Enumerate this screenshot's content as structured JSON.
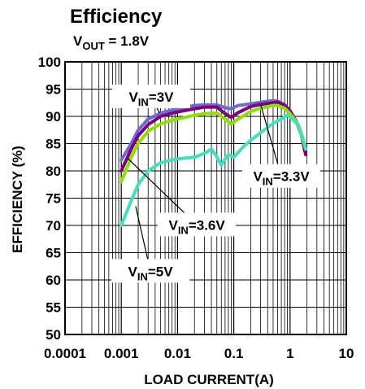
{
  "chart_data": {
    "type": "line",
    "title": "Efficiency",
    "subtitle": {
      "base": "V",
      "sub": "OUT",
      "rest": " = 1.8V"
    },
    "xlabel": "LOAD CURRENT(A)",
    "ylabel": "EFFICIENCY (%)",
    "x_scale": "log",
    "xlim": [
      0.0001,
      10
    ],
    "ylim": [
      50,
      100
    ],
    "x_ticks": [
      "0.0001",
      "0.001",
      "0.01",
      "0.1",
      "1",
      "10"
    ],
    "y_ticks": [
      "50",
      "55",
      "60",
      "65",
      "70",
      "75",
      "80",
      "85",
      "90",
      "95",
      "100"
    ],
    "grid": true,
    "series": [
      {
        "name": "VIN=3V",
        "label": {
          "base": "V",
          "sub": "IN",
          "rest": "=3V"
        },
        "color": "#6b6bd6",
        "x": [
          0.001,
          0.0015,
          0.002,
          0.003,
          0.005,
          0.008,
          0.01,
          0.02,
          0.03,
          0.05,
          0.07,
          0.09,
          0.12,
          0.2,
          0.3,
          0.5,
          0.6,
          0.8,
          1.0,
          1.3,
          1.6,
          1.9
        ],
        "values": [
          82,
          85,
          87.5,
          89.5,
          90.6,
          91.2,
          91.4,
          92,
          92.1,
          92.1,
          91.6,
          91.4,
          92,
          92.3,
          92.6,
          92.9,
          92.8,
          92.2,
          91,
          89,
          86.5,
          83
        ]
      },
      {
        "name": "VIN=3.3V",
        "label": {
          "base": "V",
          "sub": "IN",
          "rest": "=3.3V"
        },
        "color": "#800080",
        "x": [
          0.001,
          0.0015,
          0.002,
          0.003,
          0.005,
          0.008,
          0.01,
          0.02,
          0.03,
          0.05,
          0.07,
          0.09,
          0.12,
          0.2,
          0.3,
          0.5,
          0.6,
          0.8,
          1.0,
          1.3,
          1.6,
          1.9
        ],
        "values": [
          80,
          84,
          86.5,
          88.5,
          90,
          90.6,
          90.8,
          91.4,
          91.7,
          91.7,
          90.5,
          89.8,
          90.7,
          91.8,
          92.2,
          92.5,
          92.6,
          92,
          91,
          89,
          86.5,
          83
        ]
      },
      {
        "name": "VIN=3.6V",
        "label": {
          "base": "V",
          "sub": "IN",
          "rest": "=3.6V"
        },
        "color": "#8ee000",
        "x": [
          0.001,
          0.0015,
          0.002,
          0.003,
          0.005,
          0.008,
          0.01,
          0.02,
          0.03,
          0.05,
          0.07,
          0.09,
          0.12,
          0.2,
          0.3,
          0.5,
          0.6,
          0.8,
          1.0,
          1.3,
          1.6,
          1.9
        ],
        "values": [
          78,
          82.5,
          85,
          87.3,
          88.6,
          89.3,
          89.5,
          90.2,
          90.5,
          90.6,
          89.5,
          88.6,
          89.5,
          90.9,
          91.5,
          92,
          92,
          91.5,
          90.5,
          89,
          86.5,
          84
        ]
      },
      {
        "name": "VIN=5V",
        "label": {
          "base": "V",
          "sub": "IN",
          "rest": "=5V"
        },
        "color": "#40e0c0",
        "x": [
          0.001,
          0.0015,
          0.002,
          0.003,
          0.005,
          0.008,
          0.01,
          0.02,
          0.03,
          0.04,
          0.05,
          0.06,
          0.07,
          0.08,
          0.1,
          0.15,
          0.2,
          0.3,
          0.5,
          0.7,
          0.9,
          1.1,
          1.4,
          1.7,
          1.9
        ],
        "values": [
          70,
          74.5,
          77.5,
          80,
          81.5,
          82,
          82.2,
          82.5,
          83.2,
          84,
          82.6,
          81,
          82.2,
          83,
          82.5,
          84.5,
          85.6,
          87,
          88.7,
          89.5,
          90.2,
          89.5,
          88.5,
          86,
          84
        ]
      }
    ],
    "annotations": [
      {
        "series": "VIN=3V",
        "label_x": 0.0034,
        "label_y": 93.6,
        "target_x": 0.0048,
        "target_y": 90.6
      },
      {
        "series": "VIN=3.3V",
        "label_x": 0.7,
        "label_y": 79,
        "target_x": 0.3,
        "target_y": 92.2
      },
      {
        "series": "VIN=3.6V",
        "label_x": 0.022,
        "label_y": 70.1,
        "target_x": 0.0013,
        "target_y": 82.3
      },
      {
        "series": "VIN=5V",
        "label_x": 0.0033,
        "label_y": 61.6,
        "target_x": 0.0018,
        "target_y": 73.5
      }
    ]
  }
}
